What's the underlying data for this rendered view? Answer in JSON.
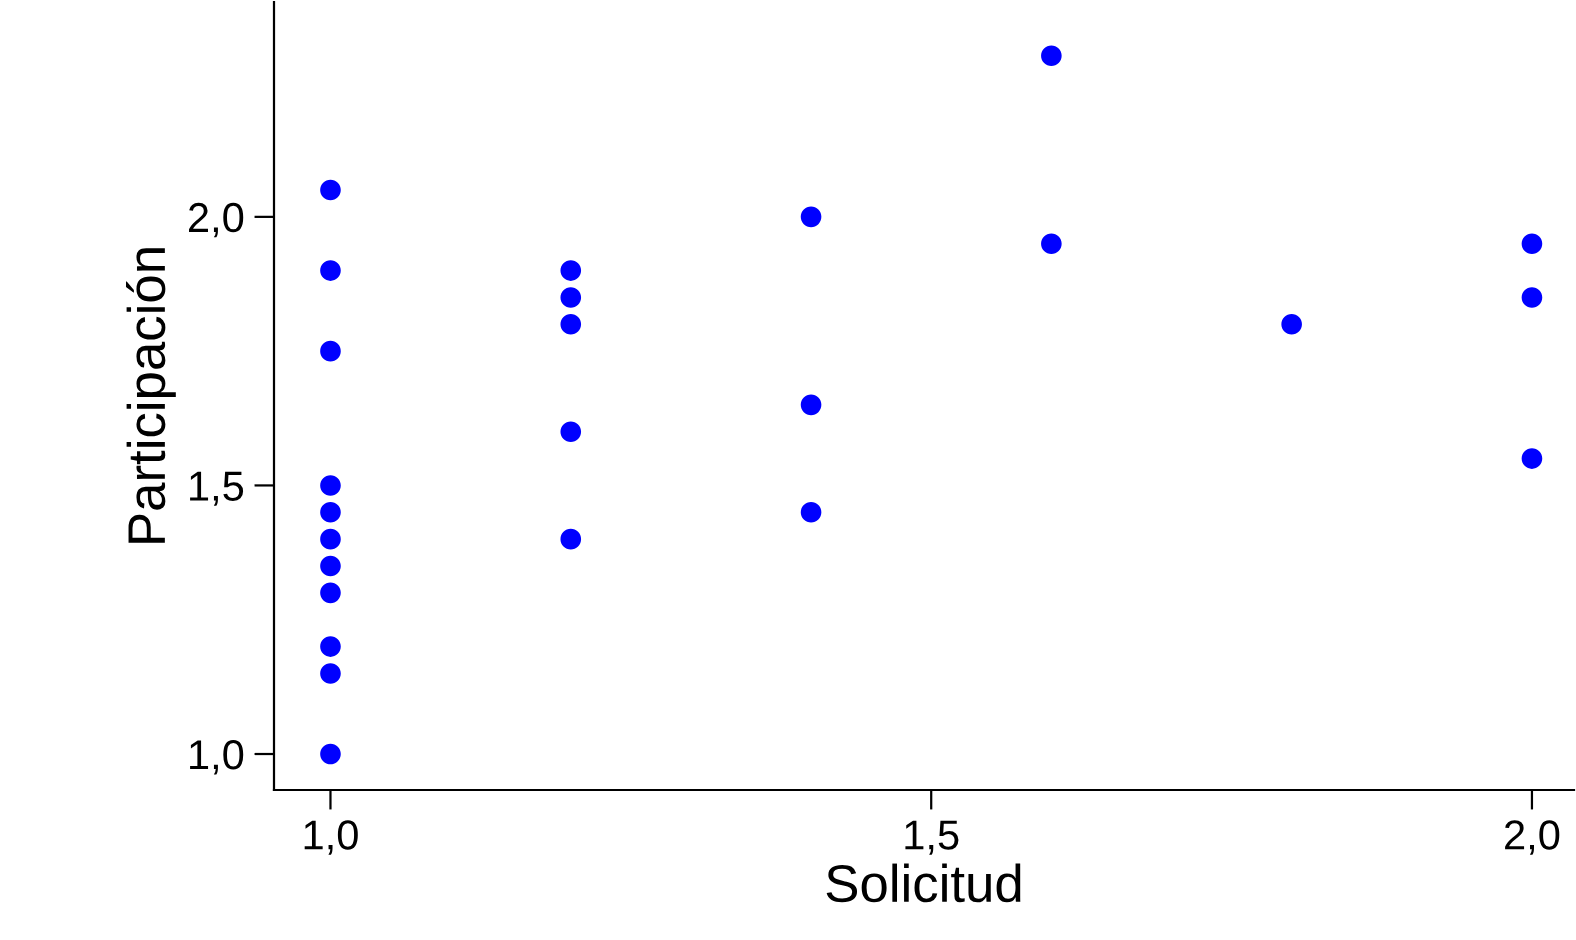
{
  "chart_data": {
    "type": "scatter",
    "xlabel": "Solicitud",
    "ylabel": "Participación",
    "color": "#0000ff",
    "marker": "circle",
    "grid": false,
    "x": [
      1.0,
      1.0,
      1.0,
      1.0,
      1.0,
      1.0,
      1.0,
      1.0,
      1.0,
      1.0,
      1.0,
      1.2,
      1.2,
      1.2,
      1.2,
      1.2,
      1.4,
      1.4,
      1.4,
      1.6,
      1.6,
      1.8,
      2.0,
      2.0,
      2.0
    ],
    "values": [
      2.05,
      1.9,
      1.75,
      1.5,
      1.45,
      1.4,
      1.35,
      1.3,
      1.2,
      1.15,
      1.0,
      1.9,
      1.85,
      1.8,
      1.6,
      1.4,
      2.0,
      1.65,
      1.45,
      2.3,
      1.95,
      1.8,
      1.95,
      1.85,
      1.55
    ],
    "xlim": [
      0.953,
      2.035
    ],
    "ylim": [
      0.933,
      2.4
    ],
    "xticks": [
      {
        "value": 1.0,
        "label": "1,0"
      },
      {
        "value": 1.5,
        "label": "1,5"
      },
      {
        "value": 2.0,
        "label": "2,0"
      }
    ],
    "yticks": [
      {
        "value": 1.0,
        "label": "1,0"
      },
      {
        "value": 1.5,
        "label": "1,5"
      },
      {
        "value": 2.0,
        "label": "2,0"
      }
    ]
  }
}
